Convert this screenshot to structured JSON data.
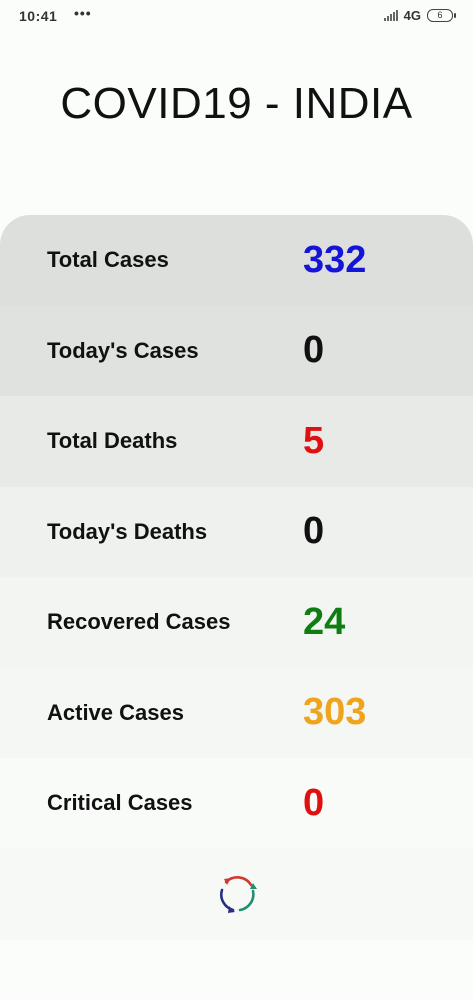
{
  "status_bar": {
    "time": "10:41",
    "dots": "•••",
    "network": "4G",
    "battery": "6"
  },
  "header": {
    "title": "COVID19 - INDIA"
  },
  "stats": [
    {
      "label": "Total Cases",
      "value": "332",
      "color": "#1515d8",
      "bg": "#dcdfdc"
    },
    {
      "label": "Today's Cases",
      "value": "0",
      "color": "#111111",
      "bg": "#dfe2df"
    },
    {
      "label": "Total Deaths",
      "value": "5",
      "color": "#e01010",
      "bg": "#e7eae7"
    },
    {
      "label": "Today's Deaths",
      "value": "0",
      "color": "#111111",
      "bg": "#eef1ee"
    },
    {
      "label": "Recovered Cases",
      "value": "24",
      "color": "#0f7e12",
      "bg": "#f2f5f2"
    },
    {
      "label": "Active Cases",
      "value": "303",
      "color": "#f0a41c",
      "bg": "#f4f7f4"
    },
    {
      "label": "Critical Cases",
      "value": "0",
      "color": "#e01010",
      "bg": "#f9fbf9"
    }
  ],
  "refresh": {
    "icon": "refresh-icon",
    "colors": [
      "#d03a2f",
      "#1f8f6d",
      "#2a2f86"
    ]
  }
}
